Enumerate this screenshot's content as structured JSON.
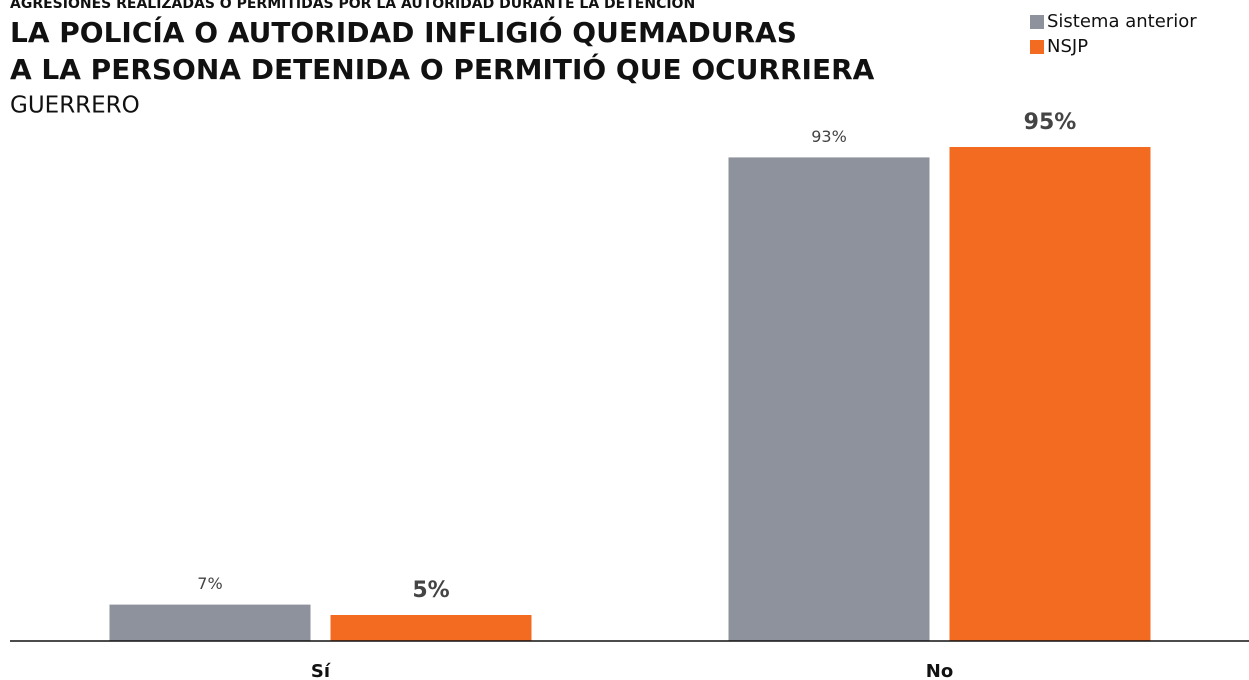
{
  "chart_data": {
    "type": "bar",
    "supertitle": "AGRESIONES REALIZADAS O PERMITIDAS POR LA AUTORIDAD DURANTE LA DETENCIÓN",
    "title": [
      "LA POLICÍA O AUTORIDAD INFLIGIÓ QUEMADURAS",
      "A LA PERSONA DETENIDA O PERMITIÓ QUE OCURRIERA"
    ],
    "subtitle": "GUERRERO",
    "categories": [
      "Sí",
      "No"
    ],
    "series": [
      {
        "name": "Sistema anterior",
        "color": "#8e929d",
        "values": [
          7,
          93
        ],
        "value_labels": [
          "7%",
          "93%"
        ]
      },
      {
        "name": "NSJP",
        "color": "#f26b21",
        "values": [
          5,
          95
        ],
        "value_labels": [
          "5%",
          "95%"
        ]
      }
    ],
    "ylim": [
      0,
      100
    ],
    "legend": "top-right"
  }
}
